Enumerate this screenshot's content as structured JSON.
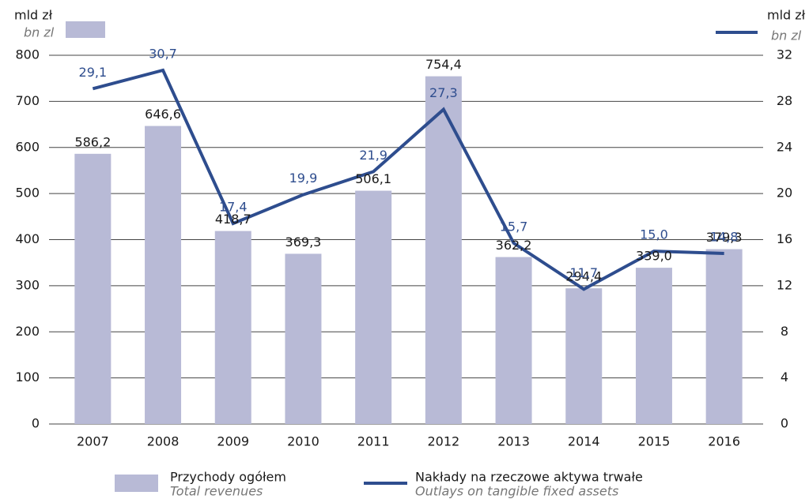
{
  "chart_data": {
    "type": "combo",
    "y_title": "mld zł",
    "y_title_en": "bn zl",
    "y2_title": "mld zł",
    "y2_title_en": "bn zl",
    "categories": [
      "2007",
      "2008",
      "2009",
      "2010",
      "2011",
      "2012",
      "2013",
      "2014",
      "2015",
      "2016"
    ],
    "series": [
      {
        "name": "Przychody ogółem",
        "name_en": "Total revenues",
        "type": "bar",
        "color": "#b8bad6",
        "values": [
          586.2,
          646.6,
          418.7,
          369.3,
          506.1,
          754.4,
          362.2,
          294.4,
          339.0,
          379.3
        ],
        "value_labels": [
          "586,2",
          "646,6",
          "418,7",
          "369,3",
          "506,1",
          "754,4",
          "362,2",
          "294,4",
          "339,0",
          "379,3"
        ]
      },
      {
        "name": "Nakłady na rzeczowe aktywa trwałe",
        "name_en": "Outlays on tangible fixed assets",
        "type": "line",
        "axis": "y2",
        "color": "#2e4d8e",
        "values": [
          29.1,
          30.7,
          17.4,
          19.9,
          21.9,
          27.3,
          15.7,
          11.7,
          15.0,
          14.8
        ],
        "value_labels": [
          "29,1",
          "30,7",
          "17,4",
          "19,9",
          "21,9",
          "27,3",
          "15,7",
          "11,7",
          "15,0",
          "14,8"
        ]
      }
    ],
    "ylim": [
      0,
      800
    ],
    "yticks": [
      0,
      100,
      200,
      300,
      400,
      500,
      600,
      700,
      800
    ],
    "y2lim": [
      0,
      32
    ],
    "y2ticks": [
      0,
      4,
      8,
      12,
      16,
      20,
      24,
      28,
      32
    ],
    "grid": true
  }
}
